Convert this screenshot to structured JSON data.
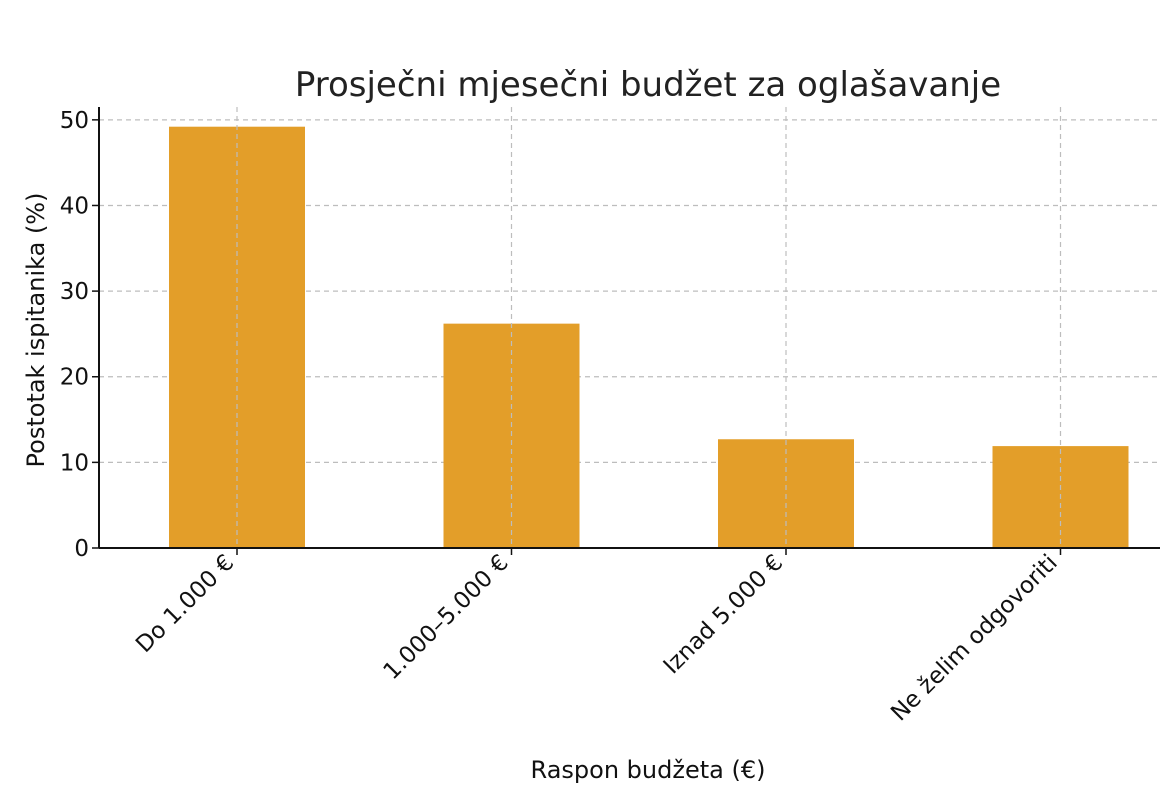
{
  "chart_data": {
    "type": "bar",
    "title": "Prosječni mjesečni budžet za oglašavanje",
    "xlabel": "Raspon budžeta (€)",
    "ylabel": "Postotak ispitanika (%)",
    "categories": [
      "Do 1.000 €",
      "1.000–5.000 €",
      "Iznad 5.000 €",
      "Ne želim odgovoriti"
    ],
    "values": [
      49.2,
      26.2,
      12.7,
      11.9
    ],
    "ylim": [
      0,
      51.5
    ],
    "yticks": [
      0,
      10,
      20,
      30,
      40,
      50
    ],
    "ytick_labels": [
      "0",
      "10",
      "20",
      "30",
      "40",
      "50"
    ],
    "grid": true,
    "bar_color": "#E39E29"
  }
}
